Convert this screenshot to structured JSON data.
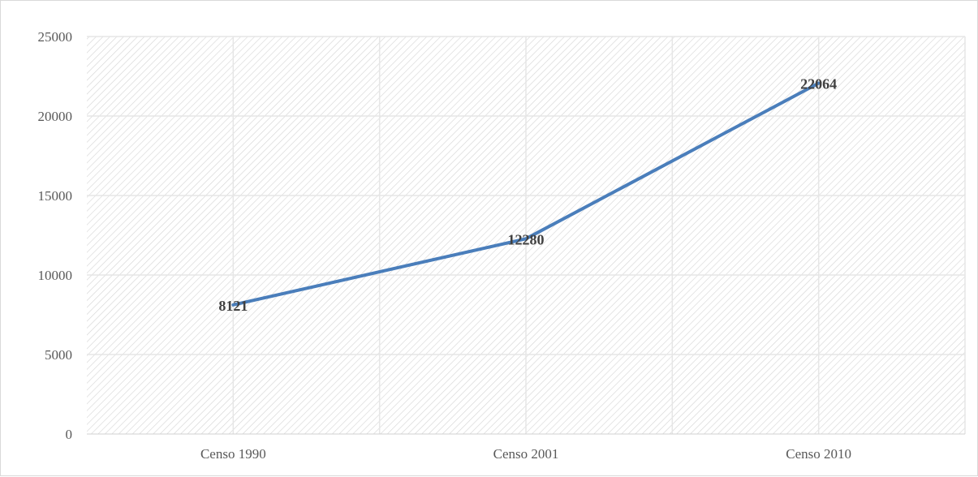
{
  "chart_data": {
    "type": "line",
    "categories": [
      "Censo 1990",
      "Censo 2001",
      "Censo 2010"
    ],
    "series": [
      {
        "values": [
          8121,
          12280,
          22064
        ],
        "color": "#4a7ebb"
      }
    ],
    "data_labels": [
      "8121",
      "12280",
      "22064"
    ],
    "yticks": [
      "0",
      "5000",
      "10000",
      "15000",
      "20000",
      "25000"
    ],
    "ylim": [
      0,
      25000
    ],
    "ytick_step": 5000,
    "title": "",
    "xlabel": "",
    "ylabel": "",
    "grid": true,
    "plot_background": "hatched",
    "legend": "none"
  }
}
